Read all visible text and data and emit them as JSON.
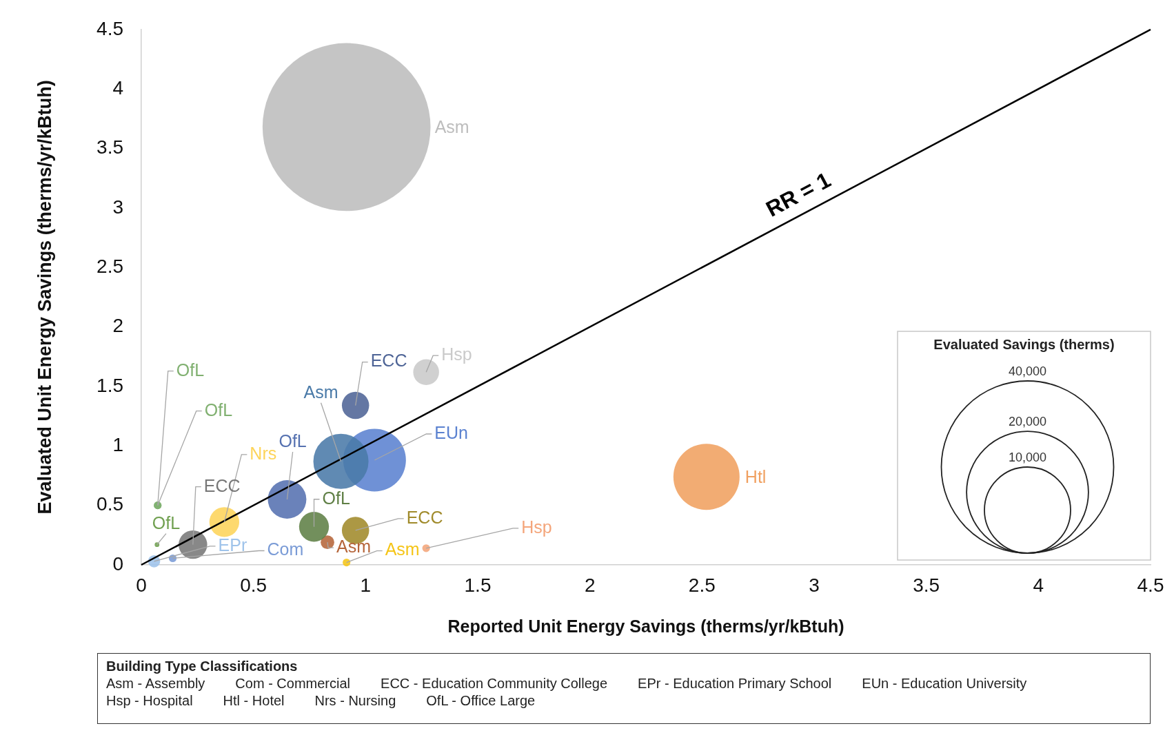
{
  "chart_data": {
    "type": "bubble",
    "xlabel": "Reported Unit Energy Savings (therms/yr/kBtuh)",
    "ylabel": "Evaluated Unit Energy Savings (therms/yr/kBtuh)",
    "xlim": [
      0,
      4.5
    ],
    "xticks": [
      0,
      0.5,
      1,
      1.5,
      2,
      2.5,
      3,
      3.5,
      4,
      4.5
    ],
    "ylim": [
      0,
      4.5
    ],
    "yticks": [
      0,
      0.5,
      1,
      1.5,
      2,
      2.5,
      3,
      3.5,
      4,
      4.5
    ],
    "legend_title": "Evaluated Savings (therms)",
    "size_legend": [
      {
        "value": 10000,
        "label": "10,000"
      },
      {
        "value": 20000,
        "label": "20,000"
      },
      {
        "value": 40000,
        "label": "40,000"
      }
    ],
    "series": [
      {
        "name": "Asm",
        "color": "#bdbdbd",
        "x": [
          0.915
        ],
        "values": [
          3.68
        ],
        "sizes": [
          38000
        ]
      },
      {
        "name": "Hsp",
        "color": "#cacaca",
        "x": [
          1.27
        ],
        "values": [
          1.62
        ],
        "sizes": [
          900
        ]
      },
      {
        "name": "ECC",
        "color": "#4e6496",
        "x": [
          0.955
        ],
        "values": [
          1.34
        ],
        "sizes": [
          1000
        ]
      },
      {
        "name": "Asm",
        "color": "#4a7aa8",
        "x": [
          0.89
        ],
        "values": [
          0.87
        ],
        "sizes": [
          4100
        ]
      },
      {
        "name": "EUn",
        "color": "#5b82d0",
        "x": [
          1.04
        ],
        "values": [
          0.88
        ],
        "sizes": [
          5300
        ]
      },
      {
        "name": "OfL",
        "color": "#5571b0",
        "x": [
          0.65
        ],
        "values": [
          0.55
        ],
        "sizes": [
          2000
        ]
      },
      {
        "name": "Nrs",
        "color": "#fdd45a",
        "x": [
          0.37
        ],
        "values": [
          0.36
        ],
        "sizes": [
          1200
        ]
      },
      {
        "name": "OfL",
        "color": "#5f7f45",
        "x": [
          0.77
        ],
        "values": [
          0.32
        ],
        "sizes": [
          1200
        ]
      },
      {
        "name": "ECC",
        "color": "#a08a2a",
        "x": [
          0.955
        ],
        "values": [
          0.29
        ],
        "sizes": [
          1000
        ]
      },
      {
        "name": "Asm",
        "color": "#b5653a",
        "x": [
          0.83
        ],
        "values": [
          0.19
        ],
        "sizes": [
          250
        ]
      },
      {
        "name": "Asm",
        "color": "#f5c518",
        "x": [
          0.915
        ],
        "values": [
          0.02
        ],
        "sizes": [
          80
        ]
      },
      {
        "name": "Hsp",
        "color": "#f4a57a",
        "x": [
          1.27
        ],
        "values": [
          0.14
        ],
        "sizes": [
          80
        ]
      },
      {
        "name": "Htl",
        "color": "#f0a060",
        "x": [
          2.52
        ],
        "values": [
          0.74
        ],
        "sizes": [
          5900
        ]
      },
      {
        "name": "ECC",
        "color": "#777777",
        "x": [
          0.23
        ],
        "values": [
          0.17
        ],
        "sizes": [
          1100
        ]
      },
      {
        "name": "EPr",
        "color": "#9ec3ea",
        "x": [
          0.057
        ],
        "values": [
          0.03
        ],
        "sizes": [
          200
        ]
      },
      {
        "name": "Com",
        "color": "#7a9bd6",
        "x": [
          0.14
        ],
        "values": [
          0.055
        ],
        "sizes": [
          80
        ]
      },
      {
        "name": "OfL",
        "color": "#80b070",
        "x": [
          0.073
        ],
        "values": [
          0.5
        ],
        "sizes": [
          80
        ]
      },
      {
        "name": "OfL",
        "color": "#80b070",
        "x": [
          0.073
        ],
        "values": [
          0.5
        ],
        "sizes": [
          80
        ]
      },
      {
        "name": "OfL",
        "color": "#70a050",
        "x": [
          0.07
        ],
        "values": [
          0.17
        ],
        "sizes": [
          30
        ]
      },
      {
        "name": "RR = 1",
        "type": "line",
        "color": "#000000",
        "x": [
          0,
          4.5
        ],
        "values": [
          0,
          4.5
        ]
      }
    ],
    "annotations": [
      "Building Type Classifications",
      "Asm - Assembly",
      "Com - Commercial",
      "ECC - Education Community College",
      "EPr - Education Primary School",
      "EUn - Education University",
      "Hsp - Hospital",
      "Htl - Hotel",
      "Nrs - Nursing",
      "OfL - Office Large"
    ]
  }
}
